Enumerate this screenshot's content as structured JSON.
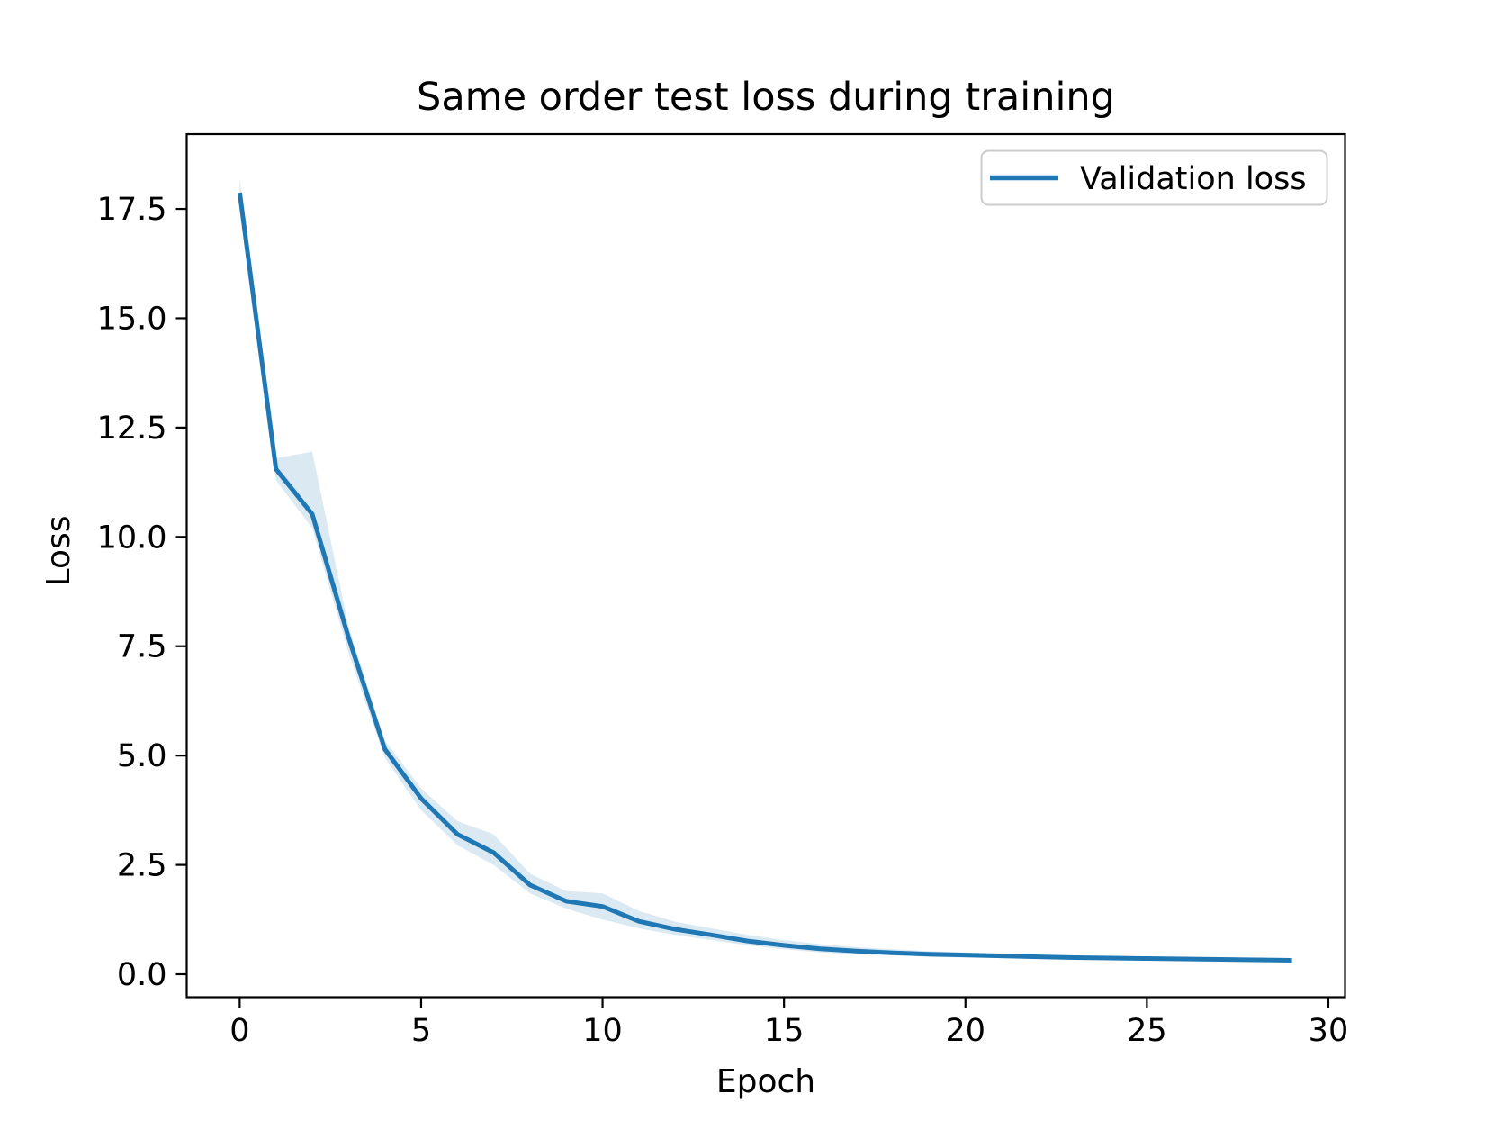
{
  "chart_data": {
    "type": "line",
    "title": "Same order test loss during training",
    "xlabel": "Epoch",
    "ylabel": "Loss",
    "x": [
      0,
      1,
      2,
      3,
      4,
      5,
      6,
      7,
      8,
      9,
      10,
      11,
      12,
      13,
      14,
      15,
      16,
      17,
      18,
      19,
      20,
      21,
      22,
      23,
      24,
      25,
      26,
      27,
      28,
      29
    ],
    "series": [
      {
        "name": "Validation loss",
        "color": "#1f77b4",
        "values": [
          17.87,
          11.55,
          10.52,
          7.7,
          5.15,
          4.02,
          3.2,
          2.78,
          2.04,
          1.67,
          1.55,
          1.21,
          1.03,
          0.9,
          0.76,
          0.66,
          0.58,
          0.53,
          0.49,
          0.46,
          0.44,
          0.42,
          0.4,
          0.38,
          0.37,
          0.36,
          0.35,
          0.34,
          0.33,
          0.32
        ],
        "band_upper": [
          18.2,
          11.8,
          11.95,
          7.95,
          5.35,
          4.25,
          3.5,
          3.2,
          2.3,
          1.9,
          1.85,
          1.45,
          1.2,
          1.05,
          0.9,
          0.78,
          0.69,
          0.62,
          0.57,
          0.53,
          0.5,
          0.48,
          0.45,
          0.43,
          0.42,
          0.4,
          0.39,
          0.38,
          0.37,
          0.36
        ],
        "band_lower": [
          17.55,
          11.3,
          10.2,
          7.35,
          4.95,
          3.75,
          2.95,
          2.5,
          1.85,
          1.5,
          1.25,
          1.05,
          0.9,
          0.78,
          0.66,
          0.57,
          0.5,
          0.46,
          0.43,
          0.4,
          0.38,
          0.37,
          0.35,
          0.34,
          0.33,
          0.32,
          0.31,
          0.31,
          0.3,
          0.29
        ],
        "band_opacity": 0.16
      }
    ],
    "x_tick_values": [
      0,
      5,
      10,
      15,
      20,
      25,
      30
    ],
    "x_tick_labels": [
      "0",
      "5",
      "10",
      "15",
      "20",
      "25",
      "30"
    ],
    "y_tick_values": [
      0.0,
      2.5,
      5.0,
      7.5,
      10.0,
      12.5,
      15.0,
      17.5
    ],
    "y_tick_labels": [
      "0.0",
      "2.5",
      "5.0",
      "7.5",
      "10.0",
      "12.5",
      "15.0",
      "17.5"
    ],
    "axis": {
      "xlim": [
        -1.46,
        30.46
      ],
      "ylim": [
        -0.525,
        19.21
      ],
      "grid": false
    },
    "legend": {
      "position": "upper right",
      "entries": [
        "Validation loss"
      ]
    },
    "colors": {
      "line": "#1f77b4",
      "band": "#1f77b4",
      "spine": "#000000",
      "legend_border": "#cccccc",
      "background": "#ffffff"
    }
  }
}
